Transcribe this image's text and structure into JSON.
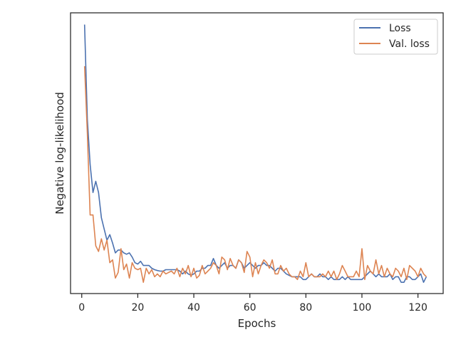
{
  "chart_data": {
    "type": "line",
    "title": "",
    "xlabel": "Epochs",
    "ylabel": "Negative log-likelihood",
    "xlim": [
      -4,
      129
    ],
    "ylim": [
      0,
      1
    ],
    "x_ticks": [
      0,
      20,
      40,
      60,
      80,
      100,
      120
    ],
    "x_tick_labels": [
      "0",
      "20",
      "40",
      "60",
      "80",
      "100",
      "120"
    ],
    "y_ticks_labeled": false,
    "grid": false,
    "legend": {
      "position": "top-right",
      "entries": [
        "Loss",
        "Val. loss"
      ]
    },
    "colors": {
      "Loss": "#4c72b0",
      "Val. loss": "#dd8452"
    },
    "series": [
      {
        "name": "Loss",
        "x": [
          1,
          2,
          3,
          4,
          5,
          6,
          7,
          8,
          9,
          10,
          11,
          12,
          13,
          14,
          15,
          16,
          17,
          18,
          19,
          20,
          21,
          22,
          23,
          24,
          25,
          26,
          27,
          28,
          29,
          30,
          31,
          32,
          33,
          34,
          35,
          36,
          37,
          38,
          39,
          40,
          41,
          42,
          43,
          44,
          45,
          46,
          47,
          48,
          49,
          50,
          51,
          52,
          53,
          54,
          55,
          56,
          57,
          58,
          59,
          60,
          61,
          62,
          63,
          64,
          65,
          66,
          67,
          68,
          69,
          70,
          71,
          72,
          73,
          74,
          75,
          76,
          77,
          78,
          79,
          80,
          81,
          82,
          83,
          84,
          85,
          86,
          87,
          88,
          89,
          90,
          91,
          92,
          93,
          94,
          95,
          96,
          97,
          98,
          99,
          100,
          101,
          102,
          103,
          104,
          105,
          106,
          107,
          108,
          109,
          110,
          111,
          112,
          113,
          114,
          115,
          116,
          117,
          118,
          119,
          120,
          121,
          122,
          123
        ],
        "y": [
          0.958,
          0.62,
          0.46,
          0.36,
          0.4,
          0.36,
          0.27,
          0.23,
          0.19,
          0.21,
          0.18,
          0.145,
          0.155,
          0.155,
          0.145,
          0.14,
          0.145,
          0.13,
          0.11,
          0.105,
          0.115,
          0.1,
          0.1,
          0.1,
          0.09,
          0.085,
          0.082,
          0.08,
          0.08,
          0.085,
          0.085,
          0.085,
          0.085,
          0.085,
          0.08,
          0.07,
          0.08,
          0.07,
          0.065,
          0.07,
          0.08,
          0.08,
          0.09,
          0.09,
          0.1,
          0.1,
          0.125,
          0.1,
          0.09,
          0.1,
          0.11,
          0.09,
          0.1,
          0.1,
          0.09,
          0.12,
          0.11,
          0.09,
          0.1,
          0.11,
          0.1,
          0.09,
          0.1,
          0.1,
          0.11,
          0.1,
          0.1,
          0.09,
          0.08,
          0.09,
          0.09,
          0.08,
          0.07,
          0.065,
          0.06,
          0.06,
          0.06,
          0.06,
          0.05,
          0.05,
          0.06,
          0.07,
          0.06,
          0.06,
          0.07,
          0.06,
          0.06,
          0.05,
          0.06,
          0.05,
          0.05,
          0.05,
          0.06,
          0.05,
          0.06,
          0.05,
          0.05,
          0.05,
          0.05,
          0.05,
          0.06,
          0.07,
          0.08,
          0.07,
          0.06,
          0.07,
          0.06,
          0.06,
          0.06,
          0.07,
          0.05,
          0.06,
          0.06,
          0.04,
          0.04,
          0.06,
          0.06,
          0.05,
          0.05,
          0.06,
          0.07,
          0.04,
          0.06
        ]
      },
      {
        "name": "Val. loss",
        "x": [
          1,
          2,
          3,
          4,
          5,
          6,
          7,
          8,
          9,
          10,
          11,
          12,
          13,
          14,
          15,
          16,
          17,
          18,
          19,
          20,
          21,
          22,
          23,
          24,
          25,
          26,
          27,
          28,
          29,
          30,
          31,
          32,
          33,
          34,
          35,
          36,
          37,
          38,
          39,
          40,
          41,
          42,
          43,
          44,
          45,
          46,
          47,
          48,
          49,
          50,
          51,
          52,
          53,
          54,
          55,
          56,
          57,
          58,
          59,
          60,
          61,
          62,
          63,
          64,
          65,
          66,
          67,
          68,
          69,
          70,
          71,
          72,
          73,
          74,
          75,
          76,
          77,
          78,
          79,
          80,
          81,
          82,
          83,
          84,
          85,
          86,
          87,
          88,
          89,
          90,
          91,
          92,
          93,
          94,
          95,
          96,
          97,
          98,
          99,
          100,
          101,
          102,
          103,
          104,
          105,
          106,
          107,
          108,
          109,
          110,
          111,
          112,
          113,
          114,
          115,
          116,
          117,
          118,
          119,
          120,
          121,
          122,
          123
        ],
        "y": [
          0.81,
          0.57,
          0.28,
          0.28,
          0.17,
          0.15,
          0.195,
          0.155,
          0.19,
          0.11,
          0.12,
          0.055,
          0.075,
          0.16,
          0.085,
          0.105,
          0.055,
          0.11,
          0.09,
          0.085,
          0.09,
          0.04,
          0.09,
          0.07,
          0.085,
          0.06,
          0.07,
          0.06,
          0.08,
          0.07,
          0.075,
          0.08,
          0.07,
          0.09,
          0.06,
          0.09,
          0.07,
          0.1,
          0.06,
          0.09,
          0.055,
          0.065,
          0.1,
          0.07,
          0.08,
          0.09,
          0.11,
          0.1,
          0.07,
          0.13,
          0.12,
          0.085,
          0.125,
          0.1,
          0.09,
          0.12,
          0.11,
          0.075,
          0.15,
          0.13,
          0.06,
          0.11,
          0.07,
          0.1,
          0.12,
          0.11,
          0.09,
          0.12,
          0.07,
          0.07,
          0.1,
          0.08,
          0.09,
          0.07,
          0.06,
          0.06,
          0.05,
          0.08,
          0.06,
          0.11,
          0.06,
          0.07,
          0.06,
          0.06,
          0.06,
          0.07,
          0.06,
          0.08,
          0.06,
          0.08,
          0.05,
          0.07,
          0.1,
          0.08,
          0.06,
          0.06,
          0.06,
          0.08,
          0.06,
          0.16,
          0.05,
          0.1,
          0.08,
          0.07,
          0.12,
          0.07,
          0.1,
          0.06,
          0.09,
          0.07,
          0.06,
          0.09,
          0.08,
          0.06,
          0.09,
          0.05,
          0.1,
          0.09,
          0.08,
          0.06,
          0.09,
          0.07,
          0.06
        ]
      }
    ]
  }
}
